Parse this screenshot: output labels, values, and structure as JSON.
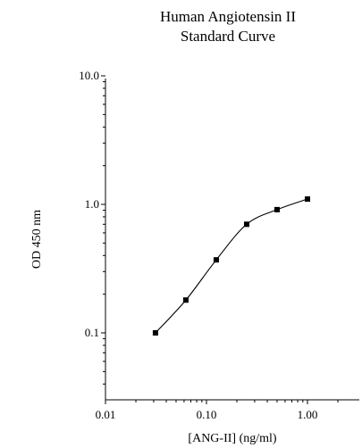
{
  "chart_data": {
    "type": "line",
    "title": [
      "Human Angiotensin II",
      "Standard Curve"
    ],
    "xlabel": "[ANG-II] (ng/ml)",
    "ylabel": "OD 450 nm",
    "x_scale": "log",
    "y_scale": "log",
    "xlim": [
      0.01,
      2.5
    ],
    "ylim": [
      0.02,
      10.0
    ],
    "x_ticks": [
      {
        "value": 0.01,
        "label": "0.01"
      },
      {
        "value": 0.1,
        "label": "0.10"
      },
      {
        "value": 1.0,
        "label": "1.00"
      }
    ],
    "y_ticks": [
      {
        "value": 0.1,
        "label": "0.1"
      },
      {
        "value": 1.0,
        "label": "1.0"
      },
      {
        "value": 10.0,
        "label": "10.0"
      }
    ],
    "grid": false,
    "marker": "square",
    "series": [
      {
        "x": [
          0.03125,
          0.0625,
          0.125,
          0.25,
          0.5,
          1.0
        ],
        "y": [
          0.1,
          0.18,
          0.37,
          0.7,
          0.91,
          1.1
        ]
      }
    ]
  }
}
